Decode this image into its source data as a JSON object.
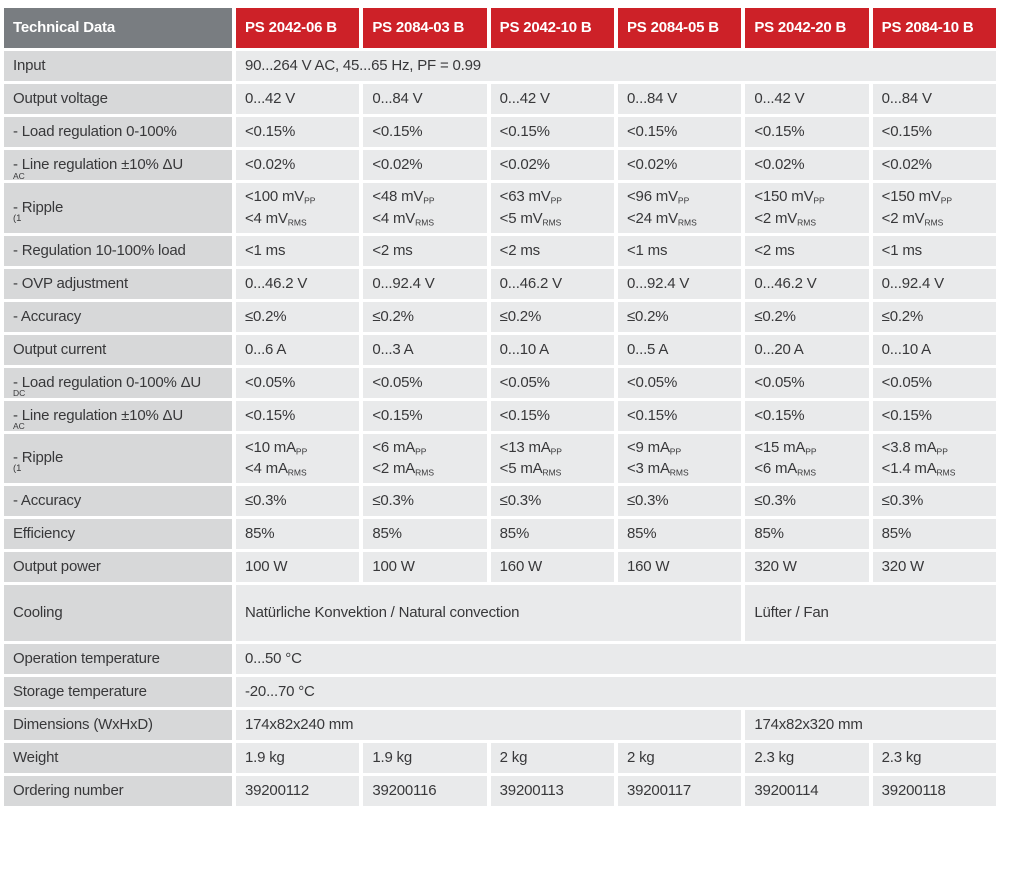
{
  "colors": {
    "header_gray": "#797d81",
    "brand_red": "#cd2128",
    "label_bg": "#d7d8d9",
    "cell_bg": "#e9eaeb",
    "text": "#38383a"
  },
  "table": {
    "title": "Technical Data",
    "products": [
      "PS 2042-06 B",
      "PS 2084-03 B",
      "PS 2042-10 B",
      "PS 2084-05 B",
      "PS 2042-20 B",
      "PS 2084-10 B"
    ],
    "rows": [
      {
        "label": "Input",
        "cells": [
          {
            "span": 6,
            "lines": [
              "90...264 V AC, 45...65 Hz, PF = 0.99"
            ]
          }
        ]
      },
      {
        "label": "Output voltage",
        "cells": [
          {
            "span": 1,
            "lines": [
              "0...42 V"
            ]
          },
          {
            "span": 1,
            "lines": [
              "0...84 V"
            ]
          },
          {
            "span": 1,
            "lines": [
              "0...42 V"
            ]
          },
          {
            "span": 1,
            "lines": [
              "0...84 V"
            ]
          },
          {
            "span": 1,
            "lines": [
              "0...42 V"
            ]
          },
          {
            "span": 1,
            "lines": [
              "0...84 V"
            ]
          }
        ]
      },
      {
        "label": "- Load regulation 0-100%",
        "cells": [
          {
            "span": 1,
            "lines": [
              "<0.15%"
            ]
          },
          {
            "span": 1,
            "lines": [
              "<0.15%"
            ]
          },
          {
            "span": 1,
            "lines": [
              "<0.15%"
            ]
          },
          {
            "span": 1,
            "lines": [
              "<0.15%"
            ]
          },
          {
            "span": 1,
            "lines": [
              "<0.15%"
            ]
          },
          {
            "span": 1,
            "lines": [
              "<0.15%"
            ]
          }
        ]
      },
      {
        "label": "- Line regulation ±10% ΔU_{AC}",
        "cells": [
          {
            "span": 1,
            "lines": [
              "<0.02%"
            ]
          },
          {
            "span": 1,
            "lines": [
              "<0.02%"
            ]
          },
          {
            "span": 1,
            "lines": [
              "<0.02%"
            ]
          },
          {
            "span": 1,
            "lines": [
              "<0.02%"
            ]
          },
          {
            "span": 1,
            "lines": [
              "<0.02%"
            ]
          },
          {
            "span": 1,
            "lines": [
              "<0.02%"
            ]
          }
        ]
      },
      {
        "label": "- Ripple ^{(1}",
        "cells": [
          {
            "span": 1,
            "lines": [
              "<100 mV_{PP}",
              "<4 mV_{RMS}"
            ]
          },
          {
            "span": 1,
            "lines": [
              "<48 mV_{PP}",
              "<4 mV_{RMS}"
            ]
          },
          {
            "span": 1,
            "lines": [
              "<63 mV_{PP}",
              "<5 mV_{RMS}"
            ]
          },
          {
            "span": 1,
            "lines": [
              "<96 mV_{PP}",
              "<24 mV_{RMS}"
            ]
          },
          {
            "span": 1,
            "lines": [
              "<150 mV_{PP}",
              "<2 mV_{RMS}"
            ]
          },
          {
            "span": 1,
            "lines": [
              "<150 mV_{PP}",
              "<2 mV_{RMS}"
            ]
          }
        ]
      },
      {
        "label": "- Regulation 10-100% load",
        "cells": [
          {
            "span": 1,
            "lines": [
              "<1 ms"
            ]
          },
          {
            "span": 1,
            "lines": [
              "<2 ms"
            ]
          },
          {
            "span": 1,
            "lines": [
              "<2 ms"
            ]
          },
          {
            "span": 1,
            "lines": [
              "<1 ms"
            ]
          },
          {
            "span": 1,
            "lines": [
              "<2 ms"
            ]
          },
          {
            "span": 1,
            "lines": [
              "<1 ms"
            ]
          }
        ]
      },
      {
        "label": "- OVP adjustment",
        "cells": [
          {
            "span": 1,
            "lines": [
              "0...46.2 V"
            ]
          },
          {
            "span": 1,
            "lines": [
              "0...92.4 V"
            ]
          },
          {
            "span": 1,
            "lines": [
              "0...46.2 V"
            ]
          },
          {
            "span": 1,
            "lines": [
              "0...92.4 V"
            ]
          },
          {
            "span": 1,
            "lines": [
              "0...46.2 V"
            ]
          },
          {
            "span": 1,
            "lines": [
              "0...92.4 V"
            ]
          }
        ]
      },
      {
        "label": "- Accuracy",
        "cells": [
          {
            "span": 1,
            "lines": [
              "≤0.2%"
            ]
          },
          {
            "span": 1,
            "lines": [
              "≤0.2%"
            ]
          },
          {
            "span": 1,
            "lines": [
              "≤0.2%"
            ]
          },
          {
            "span": 1,
            "lines": [
              "≤0.2%"
            ]
          },
          {
            "span": 1,
            "lines": [
              "≤0.2%"
            ]
          },
          {
            "span": 1,
            "lines": [
              "≤0.2%"
            ]
          }
        ]
      },
      {
        "label": "Output current",
        "cells": [
          {
            "span": 1,
            "lines": [
              "0...6 A"
            ]
          },
          {
            "span": 1,
            "lines": [
              "0...3 A"
            ]
          },
          {
            "span": 1,
            "lines": [
              "0...10 A"
            ]
          },
          {
            "span": 1,
            "lines": [
              "0...5 A"
            ]
          },
          {
            "span": 1,
            "lines": [
              "0...20 A"
            ]
          },
          {
            "span": 1,
            "lines": [
              "0...10 A"
            ]
          }
        ]
      },
      {
        "label": "- Load regulation 0-100% ΔU_{DC}",
        "cells": [
          {
            "span": 1,
            "lines": [
              "<0.05%"
            ]
          },
          {
            "span": 1,
            "lines": [
              "<0.05%"
            ]
          },
          {
            "span": 1,
            "lines": [
              "<0.05%"
            ]
          },
          {
            "span": 1,
            "lines": [
              "<0.05%"
            ]
          },
          {
            "span": 1,
            "lines": [
              "<0.05%"
            ]
          },
          {
            "span": 1,
            "lines": [
              "<0.05%"
            ]
          }
        ]
      },
      {
        "label": "- Line regulation ±10% ΔU_{AC}",
        "cells": [
          {
            "span": 1,
            "lines": [
              "<0.15%"
            ]
          },
          {
            "span": 1,
            "lines": [
              "<0.15%"
            ]
          },
          {
            "span": 1,
            "lines": [
              "<0.15%"
            ]
          },
          {
            "span": 1,
            "lines": [
              "<0.15%"
            ]
          },
          {
            "span": 1,
            "lines": [
              "<0.15%"
            ]
          },
          {
            "span": 1,
            "lines": [
              "<0.15%"
            ]
          }
        ]
      },
      {
        "label": "- Ripple ^{(1}",
        "cells": [
          {
            "span": 1,
            "lines": [
              "<10 mA_{PP}",
              "<4 mA_{RMS}"
            ]
          },
          {
            "span": 1,
            "lines": [
              "<6 mA_{PP}",
              "<2 mA_{RMS}"
            ]
          },
          {
            "span": 1,
            "lines": [
              "<13 mA_{PP}",
              "<5 mA_{RMS}"
            ]
          },
          {
            "span": 1,
            "lines": [
              "<9 mA_{PP}",
              "<3 mA_{RMS}"
            ]
          },
          {
            "span": 1,
            "lines": [
              "<15 mA_{PP}",
              "<6 mA_{RMS}"
            ]
          },
          {
            "span": 1,
            "lines": [
              "<3.8 mA_{PP}",
              "<1.4 mA_{RMS}"
            ]
          }
        ]
      },
      {
        "label": "- Accuracy",
        "cells": [
          {
            "span": 1,
            "lines": [
              "≤0.3%"
            ]
          },
          {
            "span": 1,
            "lines": [
              "≤0.3%"
            ]
          },
          {
            "span": 1,
            "lines": [
              "≤0.3%"
            ]
          },
          {
            "span": 1,
            "lines": [
              "≤0.3%"
            ]
          },
          {
            "span": 1,
            "lines": [
              "≤0.3%"
            ]
          },
          {
            "span": 1,
            "lines": [
              "≤0.3%"
            ]
          }
        ]
      },
      {
        "label": "Efficiency",
        "cells": [
          {
            "span": 1,
            "lines": [
              "85%"
            ]
          },
          {
            "span": 1,
            "lines": [
              "85%"
            ]
          },
          {
            "span": 1,
            "lines": [
              "85%"
            ]
          },
          {
            "span": 1,
            "lines": [
              "85%"
            ]
          },
          {
            "span": 1,
            "lines": [
              "85%"
            ]
          },
          {
            "span": 1,
            "lines": [
              "85%"
            ]
          }
        ]
      },
      {
        "label": "Output power",
        "cells": [
          {
            "span": 1,
            "lines": [
              "100 W"
            ]
          },
          {
            "span": 1,
            "lines": [
              "100 W"
            ]
          },
          {
            "span": 1,
            "lines": [
              "160 W"
            ]
          },
          {
            "span": 1,
            "lines": [
              "160 W"
            ]
          },
          {
            "span": 1,
            "lines": [
              "320 W"
            ]
          },
          {
            "span": 1,
            "lines": [
              "320 W"
            ]
          }
        ]
      },
      {
        "label": "Cooling",
        "tall": true,
        "cells": [
          {
            "span": 4,
            "lines": [
              "Natürliche Konvektion / Natural convection"
            ]
          },
          {
            "span": 2,
            "lines": [
              "Lüfter / Fan"
            ]
          }
        ]
      },
      {
        "label": "Operation temperature",
        "cells": [
          {
            "span": 6,
            "lines": [
              "0...50 °C"
            ]
          }
        ]
      },
      {
        "label": "Storage temperature",
        "cells": [
          {
            "span": 6,
            "lines": [
              "-20...70 °C"
            ]
          }
        ]
      },
      {
        "label": "Dimensions (WxHxD)",
        "cells": [
          {
            "span": 4,
            "lines": [
              "174x82x240 mm"
            ]
          },
          {
            "span": 2,
            "lines": [
              "174x82x320 mm"
            ]
          }
        ]
      },
      {
        "label": "Weight",
        "cells": [
          {
            "span": 1,
            "lines": [
              "1.9 kg"
            ]
          },
          {
            "span": 1,
            "lines": [
              "1.9 kg"
            ]
          },
          {
            "span": 1,
            "lines": [
              "2 kg"
            ]
          },
          {
            "span": 1,
            "lines": [
              "2 kg"
            ]
          },
          {
            "span": 1,
            "lines": [
              "2.3 kg"
            ]
          },
          {
            "span": 1,
            "lines": [
              "2.3 kg"
            ]
          }
        ]
      },
      {
        "label": "Ordering number",
        "cells": [
          {
            "span": 1,
            "lines": [
              "39200112"
            ]
          },
          {
            "span": 1,
            "lines": [
              "39200116"
            ]
          },
          {
            "span": 1,
            "lines": [
              "39200113"
            ]
          },
          {
            "span": 1,
            "lines": [
              "39200117"
            ]
          },
          {
            "span": 1,
            "lines": [
              "39200114"
            ]
          },
          {
            "span": 1,
            "lines": [
              "39200118"
            ]
          }
        ]
      }
    ]
  }
}
